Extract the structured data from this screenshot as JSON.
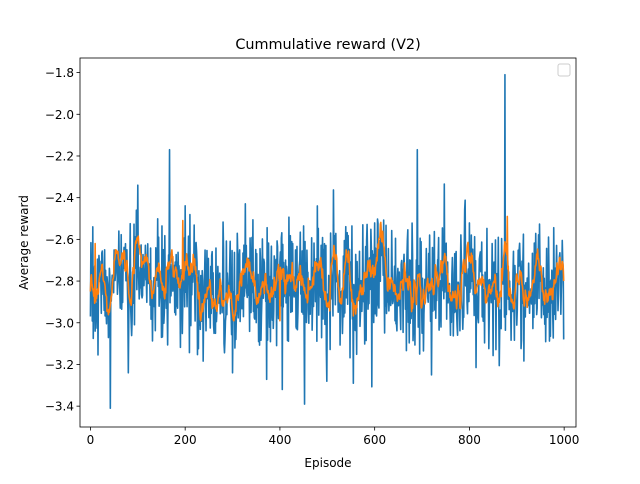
{
  "chart_data": {
    "type": "line",
    "title": "Cummulative reward (V2)",
    "xlabel": "Episode",
    "ylabel": "Average reward",
    "xlim": [
      -22,
      1025
    ],
    "ylim": [
      -3.5,
      -1.73
    ],
    "xticks": [
      0,
      200,
      400,
      600,
      800,
      1000
    ],
    "xtick_labels": [
      "0",
      "200",
      "400",
      "600",
      "800",
      "1000"
    ],
    "yticks": [
      -3.4,
      -3.2,
      -3.0,
      -2.8,
      -2.6,
      -2.4,
      -2.2,
      -2.0,
      -1.8
    ],
    "ytick_labels": [
      "−3.4",
      "−3.2",
      "−3.0",
      "−2.8",
      "−2.6",
      "−2.4",
      "−2.2",
      "−2.0",
      "−1.8"
    ],
    "grid": false,
    "legend": {
      "placement": "upper right",
      "entries": []
    },
    "series": [
      {
        "color": "#1f77b4",
        "style": "noisy raw per-episode reward",
        "n_points": 1000,
        "mean": -2.83,
        "stdev": 0.15,
        "min": -3.41,
        "max": -1.81,
        "notable_points": [
          {
            "x": 0,
            "y": -2.97
          },
          {
            "x": 5,
            "y": -2.54
          },
          {
            "x": 10,
            "y": -3.04
          },
          {
            "x": 42,
            "y": -3.41
          },
          {
            "x": 60,
            "y": -2.56
          },
          {
            "x": 80,
            "y": -3.24
          },
          {
            "x": 100,
            "y": -2.34
          },
          {
            "x": 167,
            "y": -2.17
          },
          {
            "x": 300,
            "y": -3.24
          },
          {
            "x": 405,
            "y": -3.32
          },
          {
            "x": 555,
            "y": -3.29
          },
          {
            "x": 690,
            "y": -2.17
          },
          {
            "x": 720,
            "y": -3.25
          },
          {
            "x": 875,
            "y": -1.81
          },
          {
            "x": 1000,
            "y": -3.08
          }
        ]
      },
      {
        "color": "#ff7f0e",
        "style": "smoothed moving average",
        "n_points": 1000,
        "mean": -2.8,
        "stdev": 0.08,
        "min": -2.99,
        "max": -2.5,
        "notable_points": [
          {
            "x": 0,
            "y": -2.85
          },
          {
            "x": 10,
            "y": -2.62
          },
          {
            "x": 40,
            "y": -2.95
          },
          {
            "x": 195,
            "y": -2.51
          },
          {
            "x": 400,
            "y": -2.99
          },
          {
            "x": 880,
            "y": -2.49
          },
          {
            "x": 1000,
            "y": -2.8
          }
        ]
      }
    ]
  }
}
